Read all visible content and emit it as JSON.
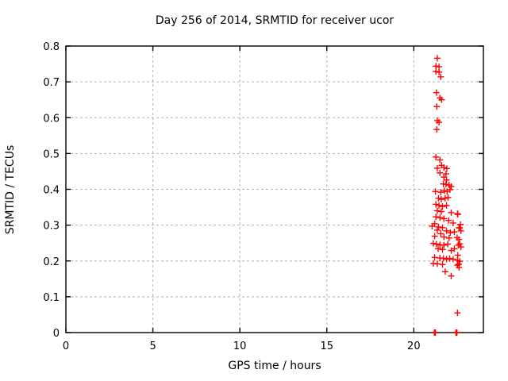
{
  "title": "Day 256 of 2014, SRMTID for receiver ucor",
  "axes": {
    "xlabel": "GPS time / hours",
    "ylabel": "SRMTID / TECUs"
  },
  "colors": {
    "background": "#ffffff",
    "frame": "#000000",
    "grid": "#b4b4b4",
    "marker": "#ff0000",
    "text": "#000000"
  },
  "chart_data": {
    "type": "scatter",
    "title": "Day 256 of 2014, SRMTID for receiver ucor",
    "xlabel": "GPS time / hours",
    "ylabel": "SRMTID / TECUs",
    "xlim": [
      0,
      24
    ],
    "ylim": [
      0,
      0.8
    ],
    "grid": true,
    "legend_position": "none",
    "marker": "plus",
    "marker_color": "#ff0000",
    "xticks": {
      "values": [
        0,
        5,
        10,
        15,
        20
      ],
      "labels": [
        "0",
        "5",
        "10",
        "15",
        "20"
      ]
    },
    "yticks": {
      "values": [
        0,
        0.1,
        0.2,
        0.3,
        0.4,
        0.5,
        0.6,
        0.7,
        0.8
      ],
      "labels": [
        "0",
        "0.1",
        "0.2",
        "0.3",
        "0.4",
        "0.5",
        "0.6",
        "0.7",
        "0.8"
      ]
    },
    "series": [
      {
        "name": "SRMTID",
        "points": [
          [
            21.35,
            0.766
          ],
          [
            21.27,
            0.744
          ],
          [
            21.45,
            0.742
          ],
          [
            21.27,
            0.729
          ],
          [
            21.45,
            0.727
          ],
          [
            21.55,
            0.714
          ],
          [
            21.3,
            0.67
          ],
          [
            21.5,
            0.655
          ],
          [
            21.6,
            0.65
          ],
          [
            21.32,
            0.631
          ],
          [
            21.35,
            0.592
          ],
          [
            21.45,
            0.587
          ],
          [
            21.32,
            0.567
          ],
          [
            21.27,
            0.49
          ],
          [
            21.5,
            0.482
          ],
          [
            21.6,
            0.467
          ],
          [
            21.35,
            0.459
          ],
          [
            21.73,
            0.461
          ],
          [
            21.9,
            0.458
          ],
          [
            21.5,
            0.446
          ],
          [
            21.85,
            0.443
          ],
          [
            21.73,
            0.434
          ],
          [
            21.88,
            0.426
          ],
          [
            21.7,
            0.415
          ],
          [
            21.85,
            0.414
          ],
          [
            22.03,
            0.412
          ],
          [
            22.15,
            0.408
          ],
          [
            21.24,
            0.394
          ],
          [
            21.55,
            0.392
          ],
          [
            21.76,
            0.396
          ],
          [
            21.91,
            0.394
          ],
          [
            22.08,
            0.399
          ],
          [
            21.42,
            0.375
          ],
          [
            21.58,
            0.372
          ],
          [
            21.8,
            0.375
          ],
          [
            21.97,
            0.377
          ],
          [
            21.27,
            0.358
          ],
          [
            21.45,
            0.355
          ],
          [
            21.65,
            0.352
          ],
          [
            21.88,
            0.355
          ],
          [
            21.35,
            0.34
          ],
          [
            21.58,
            0.338
          ],
          [
            22.15,
            0.335
          ],
          [
            22.51,
            0.332
          ],
          [
            22.53,
            0.33
          ],
          [
            21.27,
            0.323
          ],
          [
            21.5,
            0.321
          ],
          [
            21.73,
            0.318
          ],
          [
            22.0,
            0.313
          ],
          [
            21.2,
            0.304
          ],
          [
            22.26,
            0.306
          ],
          [
            22.68,
            0.302
          ],
          [
            21.05,
            0.297
          ],
          [
            21.42,
            0.295
          ],
          [
            21.65,
            0.293
          ],
          [
            22.64,
            0.292
          ],
          [
            22.6,
            0.293
          ],
          [
            22.71,
            0.284
          ],
          [
            21.35,
            0.286
          ],
          [
            21.88,
            0.284
          ],
          [
            21.55,
            0.276
          ],
          [
            22.1,
            0.279
          ],
          [
            22.33,
            0.281
          ],
          [
            21.2,
            0.269
          ],
          [
            21.73,
            0.267
          ],
          [
            22.03,
            0.264
          ],
          [
            22.49,
            0.265
          ],
          [
            22.59,
            0.26
          ],
          [
            21.12,
            0.249
          ],
          [
            21.3,
            0.247
          ],
          [
            21.5,
            0.245
          ],
          [
            21.73,
            0.244
          ],
          [
            21.95,
            0.247
          ],
          [
            22.56,
            0.244
          ],
          [
            22.64,
            0.248
          ],
          [
            22.71,
            0.239
          ],
          [
            21.4,
            0.234
          ],
          [
            21.65,
            0.232
          ],
          [
            22.33,
            0.234
          ],
          [
            22.15,
            0.229
          ],
          [
            21.2,
            0.21
          ],
          [
            21.5,
            0.208
          ],
          [
            21.7,
            0.207
          ],
          [
            21.88,
            0.205
          ],
          [
            22.06,
            0.207
          ],
          [
            22.26,
            0.205
          ],
          [
            22.51,
            0.202
          ],
          [
            22.53,
            0.216
          ],
          [
            21.12,
            0.193
          ],
          [
            21.35,
            0.192
          ],
          [
            21.65,
            0.19
          ],
          [
            22.51,
            0.188
          ],
          [
            22.6,
            0.182
          ],
          [
            22.64,
            0.199
          ],
          [
            22.59,
            0.191
          ],
          [
            21.81,
            0.17
          ],
          [
            22.15,
            0.158
          ],
          [
            22.51,
            0.055
          ],
          [
            21.18,
            0.0
          ],
          [
            21.21,
            0.0
          ],
          [
            21.24,
            0.0
          ],
          [
            22.42,
            0.0
          ],
          [
            22.45,
            0.0
          ],
          [
            22.48,
            0.0
          ]
        ]
      }
    ]
  }
}
